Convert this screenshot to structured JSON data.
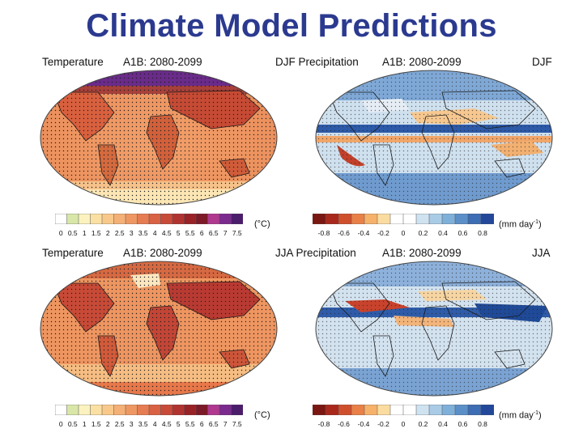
{
  "slide": {
    "title": "Climate Model Predictions"
  },
  "panels": {
    "temp_djf": {
      "variable": "Temperature",
      "scenario": "A1B: 2080-2099"
    },
    "precip_djf": {
      "variable": "DJF Precipitation",
      "scenario": "A1B: 2080-2099",
      "season": "DJF"
    },
    "temp_jja": {
      "variable": "Temperature",
      "scenario": "A1B: 2080-2099"
    },
    "precip_jja": {
      "variable": "JJA Precipitation",
      "scenario": "A1B: 2080-2099",
      "season": "JJA"
    }
  },
  "temperature_colorbar": {
    "unit": "(°C)",
    "ticks": [
      "0",
      "0.5",
      "1",
      "1.5",
      "2",
      "2.5",
      "3",
      "3.5",
      "4",
      "4.5",
      "5",
      "5.5",
      "6",
      "6.5",
      "7",
      "7.5"
    ],
    "colors": [
      "#ffffff",
      "#d8e6a8",
      "#fbf2c0",
      "#fbe0a3",
      "#f8c98a",
      "#f4b076",
      "#ef9763",
      "#e67c52",
      "#d96144",
      "#c84a39",
      "#b03330",
      "#982226",
      "#7d1a28",
      "#b0388f",
      "#7b2a8e",
      "#4b1d6b"
    ]
  },
  "precipitation_colorbar": {
    "unit_prefix": "(mm day",
    "unit_exponent": "-1",
    "unit_suffix": ")",
    "ticks": [
      "-0.8",
      "-0.6",
      "-0.4",
      "-0.2",
      "0",
      "0.2",
      "0.4",
      "0.6",
      "0.8"
    ],
    "colors": [
      "#7a1712",
      "#a8281c",
      "#cf4f2c",
      "#e98048",
      "#f6b26b",
      "#fbdca0",
      "#ffffff",
      "#ffffff",
      "#cfe2f0",
      "#a9cbe6",
      "#7fb0da",
      "#5b8fc8",
      "#3d6db4",
      "#23489a"
    ]
  },
  "colors": {
    "title": "#2b3a8f",
    "ocean_blue": "#8fb8e0",
    "land_orange": "#e98a55"
  }
}
